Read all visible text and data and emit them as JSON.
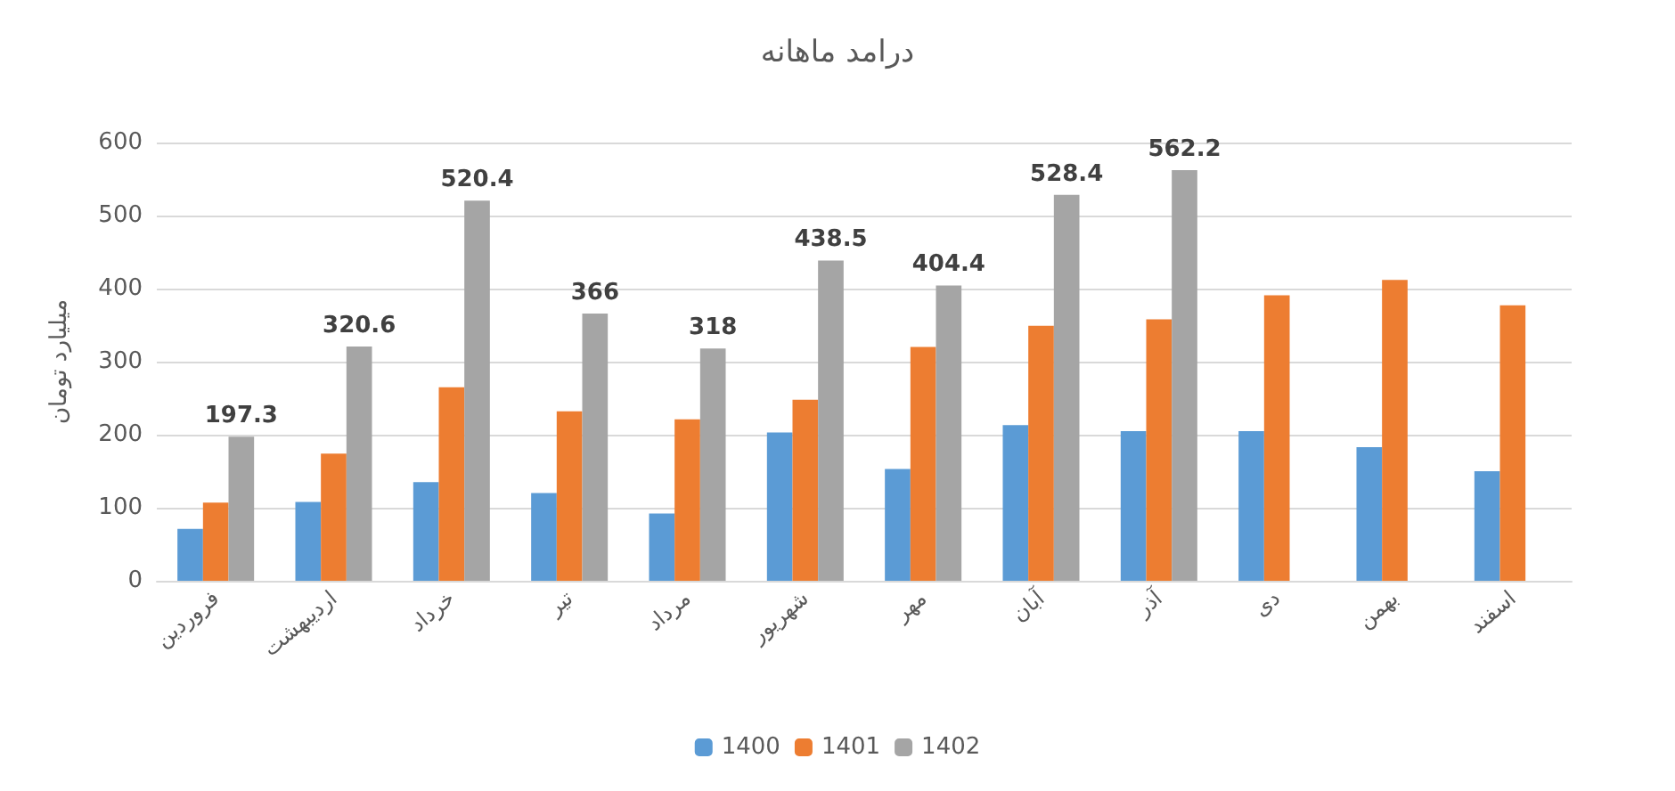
{
  "chart_data": {
    "type": "bar",
    "title": "درامد ماهانه",
    "ylabel": "میلیارد تومان",
    "categories": [
      "فروردین",
      "اردیبهشت",
      "خرداد",
      "تیر",
      "مرداد",
      "شهریور",
      "مهر",
      "آبان",
      "آذر",
      "دی",
      "بهمن",
      "اسفند"
    ],
    "series": [
      {
        "name": "1400",
        "color": "#5b9bd5",
        "values": [
          71,
          108,
          135,
          120,
          92,
          203,
          153,
          213,
          205,
          205,
          183,
          150
        ]
      },
      {
        "name": "1401",
        "color": "#ed7d31",
        "values": [
          107,
          174,
          265,
          232,
          221,
          248,
          320,
          349,
          358,
          391,
          412,
          377
        ]
      },
      {
        "name": "1402",
        "color": "#a5a5a5",
        "values": [
          197.3,
          320.6,
          520.4,
          366,
          318,
          438.5,
          404.4,
          528.4,
          562.2,
          null,
          null,
          null
        ],
        "value_labels": [
          "197.3",
          "320.6",
          "520.4",
          "366",
          "318",
          "438.5",
          "404.4",
          "528.4",
          "562.2",
          null,
          null,
          null
        ]
      }
    ],
    "ylim": [
      0,
      600
    ],
    "yticks": [
      0,
      100,
      200,
      300,
      400,
      500,
      600
    ],
    "grid": "y",
    "legend": "bottom"
  }
}
